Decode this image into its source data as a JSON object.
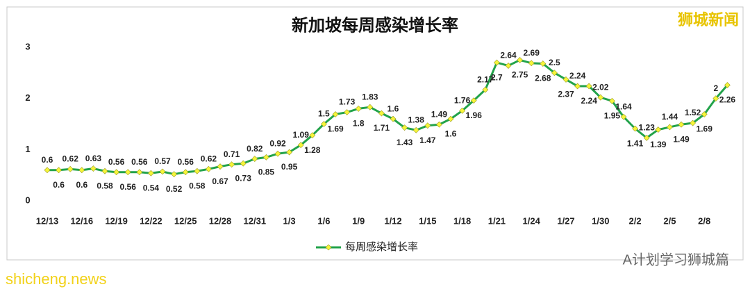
{
  "chart_data": {
    "type": "line",
    "title": "新加坡每周感染增长率",
    "categories": [
      "12/13",
      null,
      null,
      "12/16",
      null,
      null,
      "12/19",
      null,
      null,
      "12/22",
      null,
      null,
      "12/25",
      null,
      null,
      "12/28",
      null,
      null,
      "12/31",
      null,
      null,
      "1/3",
      null,
      null,
      "1/6",
      null,
      null,
      "1/9",
      null,
      null,
      "1/12",
      null,
      null,
      "1/15",
      null,
      null,
      "1/18",
      null,
      null,
      "1/21",
      null,
      null,
      "1/24",
      null,
      null,
      "1/27",
      null,
      null,
      "1/30",
      null,
      null,
      "2/2",
      null,
      null,
      "2/5",
      null,
      null,
      "2/8",
      null,
      null
    ],
    "series": [
      {
        "name": "每周感染增长率",
        "color": "#22a34a",
        "marker_color": "#f5f53a",
        "values": [
          0.6,
          0.6,
          0.62,
          0.6,
          0.63,
          0.58,
          0.56,
          0.56,
          0.56,
          0.54,
          0.57,
          0.52,
          0.56,
          0.58,
          0.62,
          0.67,
          0.71,
          0.73,
          0.82,
          0.85,
          0.92,
          0.95,
          1.09,
          1.28,
          1.5,
          1.69,
          1.73,
          1.8,
          1.83,
          1.71,
          1.6,
          1.43,
          1.38,
          1.47,
          1.49,
          1.6,
          1.76,
          1.96,
          2.17,
          2.7,
          2.64,
          2.75,
          2.69,
          2.68,
          2.5,
          2.37,
          2.24,
          2.24,
          2.02,
          1.95,
          1.64,
          1.41,
          1.23,
          1.39,
          1.44,
          1.49,
          1.52,
          1.69,
          2,
          2.26
        ]
      }
    ],
    "ylim": [
      0,
      3
    ],
    "yticks": [
      0,
      1,
      2,
      3
    ],
    "grid": false,
    "legend": "bottom",
    "watermarks": [
      "狮城新闻",
      "shicheng.news",
      "A计划学习狮城篇"
    ]
  }
}
